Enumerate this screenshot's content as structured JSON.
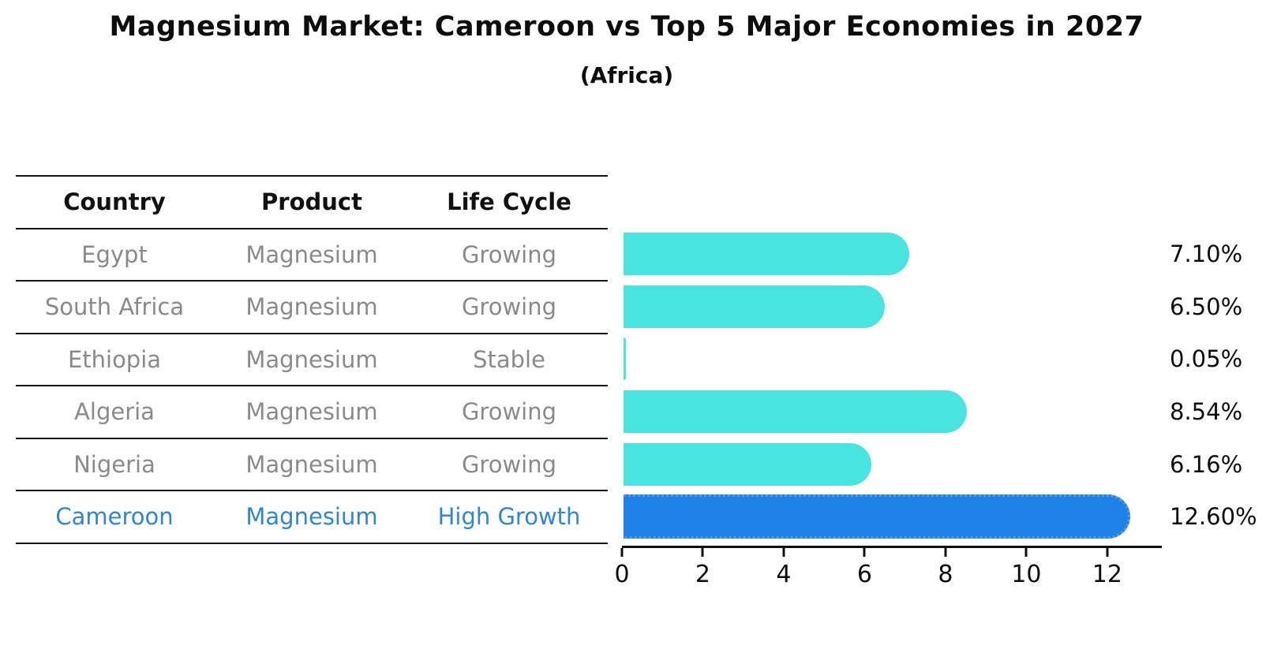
{
  "title": "Magnesium Market: Cameroon vs Top 5 Major Economies in 2027",
  "subtitle": "(Africa)",
  "table": {
    "headers": [
      "Country",
      "Product",
      "Life Cycle"
    ],
    "rows": [
      {
        "country": "Egypt",
        "product": "Magnesium",
        "life_cycle": "Growing"
      },
      {
        "country": "South Africa",
        "product": "Magnesium",
        "life_cycle": "Growing"
      },
      {
        "country": "Ethiopia",
        "product": "Magnesium",
        "life_cycle": "Stable"
      },
      {
        "country": "Algeria",
        "product": "Magnesium",
        "life_cycle": "Growing"
      },
      {
        "country": "Nigeria",
        "product": "Magnesium",
        "life_cycle": "Growing"
      },
      {
        "country": "Cameroon",
        "product": "Magnesium",
        "life_cycle": "High Growth"
      }
    ],
    "highlight_row": 5
  },
  "chart_data": {
    "type": "bar",
    "orientation": "horizontal",
    "title": "Magnesium Market: Cameroon vs Top 5 Major Economies in 2027",
    "subtitle": "(Africa)",
    "categories": [
      "Egypt",
      "South Africa",
      "Ethiopia",
      "Algeria",
      "Nigeria",
      "Cameroon"
    ],
    "values": [
      7.1,
      6.5,
      0.05,
      8.54,
      6.16,
      12.6
    ],
    "value_labels": [
      "7.10%",
      "6.50%",
      "0.05%",
      "8.54%",
      "6.16%",
      "12.60%"
    ],
    "x_ticks": [
      0,
      2,
      4,
      6,
      8,
      10,
      12
    ],
    "xlim": [
      0,
      13.35
    ],
    "grid": false,
    "legend": false,
    "highlight_index": 5,
    "colors": {
      "bar": "#47E4E0",
      "highlight_bar": "#1E81E8",
      "highlight_text": "#2E86D4",
      "body_text": "#8A8A8A",
      "heading_text": "#111111",
      "axis": "#111111"
    }
  }
}
